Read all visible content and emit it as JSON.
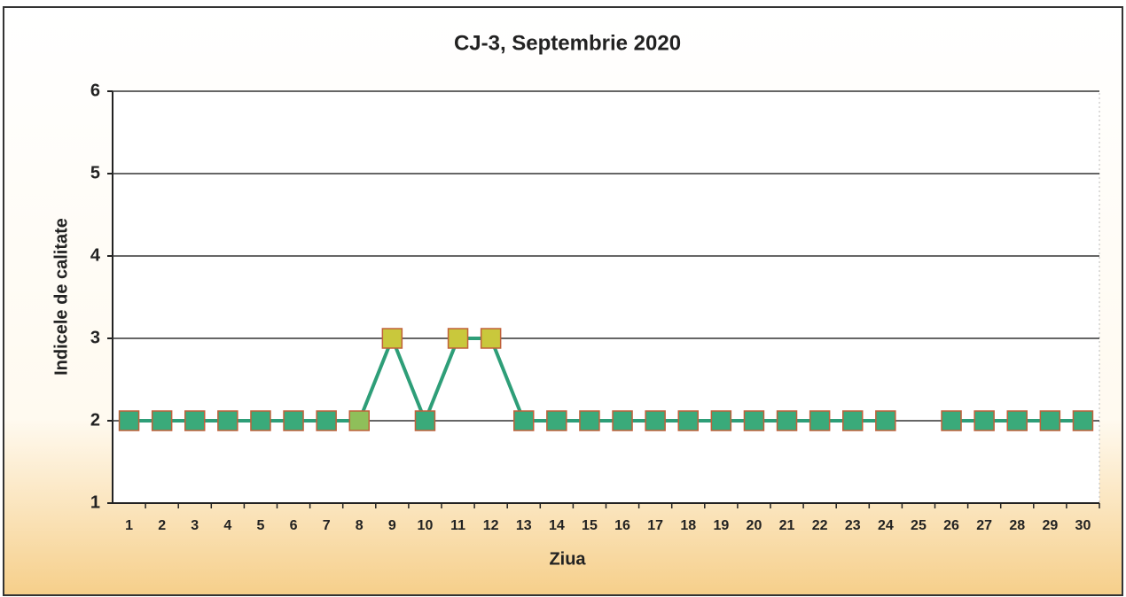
{
  "chart_data": {
    "type": "line",
    "title": "CJ-3, Septembrie 2020",
    "x_label": "Ziua",
    "y_label": "Indicele de calitate",
    "categories": [
      "1",
      "2",
      "3",
      "4",
      "5",
      "6",
      "7",
      "8",
      "9",
      "10",
      "11",
      "12",
      "13",
      "14",
      "15",
      "16",
      "17",
      "18",
      "19",
      "20",
      "21",
      "22",
      "23",
      "24",
      "25",
      "26",
      "27",
      "28",
      "29",
      "30"
    ],
    "series": [
      {
        "name": "CJ-3",
        "color": "#2e9e78",
        "values": [
          2,
          2,
          2,
          2,
          2,
          2,
          2,
          2,
          3,
          2,
          3,
          3,
          2,
          2,
          2,
          2,
          2,
          2,
          2,
          2,
          2,
          2,
          2,
          2,
          null,
          2,
          2,
          2,
          2,
          2
        ],
        "marker_colors": [
          "#3aaa7a",
          "#3aaa7a",
          "#3aaa7a",
          "#3aaa7a",
          "#3aaa7a",
          "#3aaa7a",
          "#3aaa7a",
          "#8fbf5a",
          "#c9c83c",
          "#3aaa7a",
          "#c9c83c",
          "#c9c83c",
          "#3aaa7a",
          "#3aaa7a",
          "#3aaa7a",
          "#3aaa7a",
          "#3aaa7a",
          "#3aaa7a",
          "#3aaa7a",
          "#3aaa7a",
          "#3aaa7a",
          "#3aaa7a",
          "#3aaa7a",
          "#3aaa7a",
          null,
          "#3aaa7a",
          "#3aaa7a",
          "#3aaa7a",
          "#3aaa7a",
          "#3aaa7a"
        ]
      }
    ],
    "ylim": [
      1,
      6
    ],
    "yticks": [
      1,
      2,
      3,
      4,
      5,
      6
    ],
    "grid": true
  }
}
